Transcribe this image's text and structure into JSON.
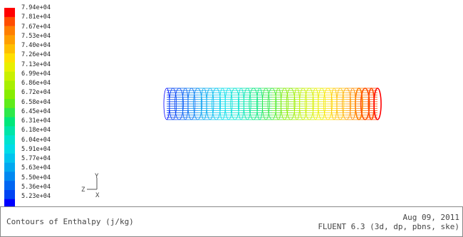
{
  "legend": {
    "title": "",
    "colors": [
      "#ff0000",
      "#ff4d00",
      "#ff7f00",
      "#ff9f00",
      "#ffbf00",
      "#ffdf00",
      "#e8ef00",
      "#c9f000",
      "#a8ef00",
      "#86ec00",
      "#5feb1a",
      "#2ee84a",
      "#00e77a",
      "#00e5a8",
      "#00e3cf",
      "#00dce8",
      "#00c4ef",
      "#00a8f0",
      "#0088f1",
      "#0066f2",
      "#0044f3",
      "#0000ff"
    ],
    "labels": [
      "7.94e+04",
      "7.81e+04",
      "7.67e+04",
      "7.53e+04",
      "7.40e+04",
      "7.26e+04",
      "7.13e+04",
      "6.99e+04",
      "6.86e+04",
      "6.72e+04",
      "6.58e+04",
      "6.45e+04",
      "6.31e+04",
      "6.18e+04",
      "6.04e+04",
      "5.91e+04",
      "5.77e+04",
      "5.63e+04",
      "5.50e+04",
      "5.36e+04",
      "5.23e+04"
    ]
  },
  "triad": {
    "y_label": "Y",
    "z_label": "Z",
    "x_label": "X"
  },
  "footer": {
    "caption": "Contours of Enthalpy (j/kg)",
    "date": "Aug 09, 2011",
    "solver": "FLUENT 6.3 (3d, dp, pbns, ske)"
  }
}
